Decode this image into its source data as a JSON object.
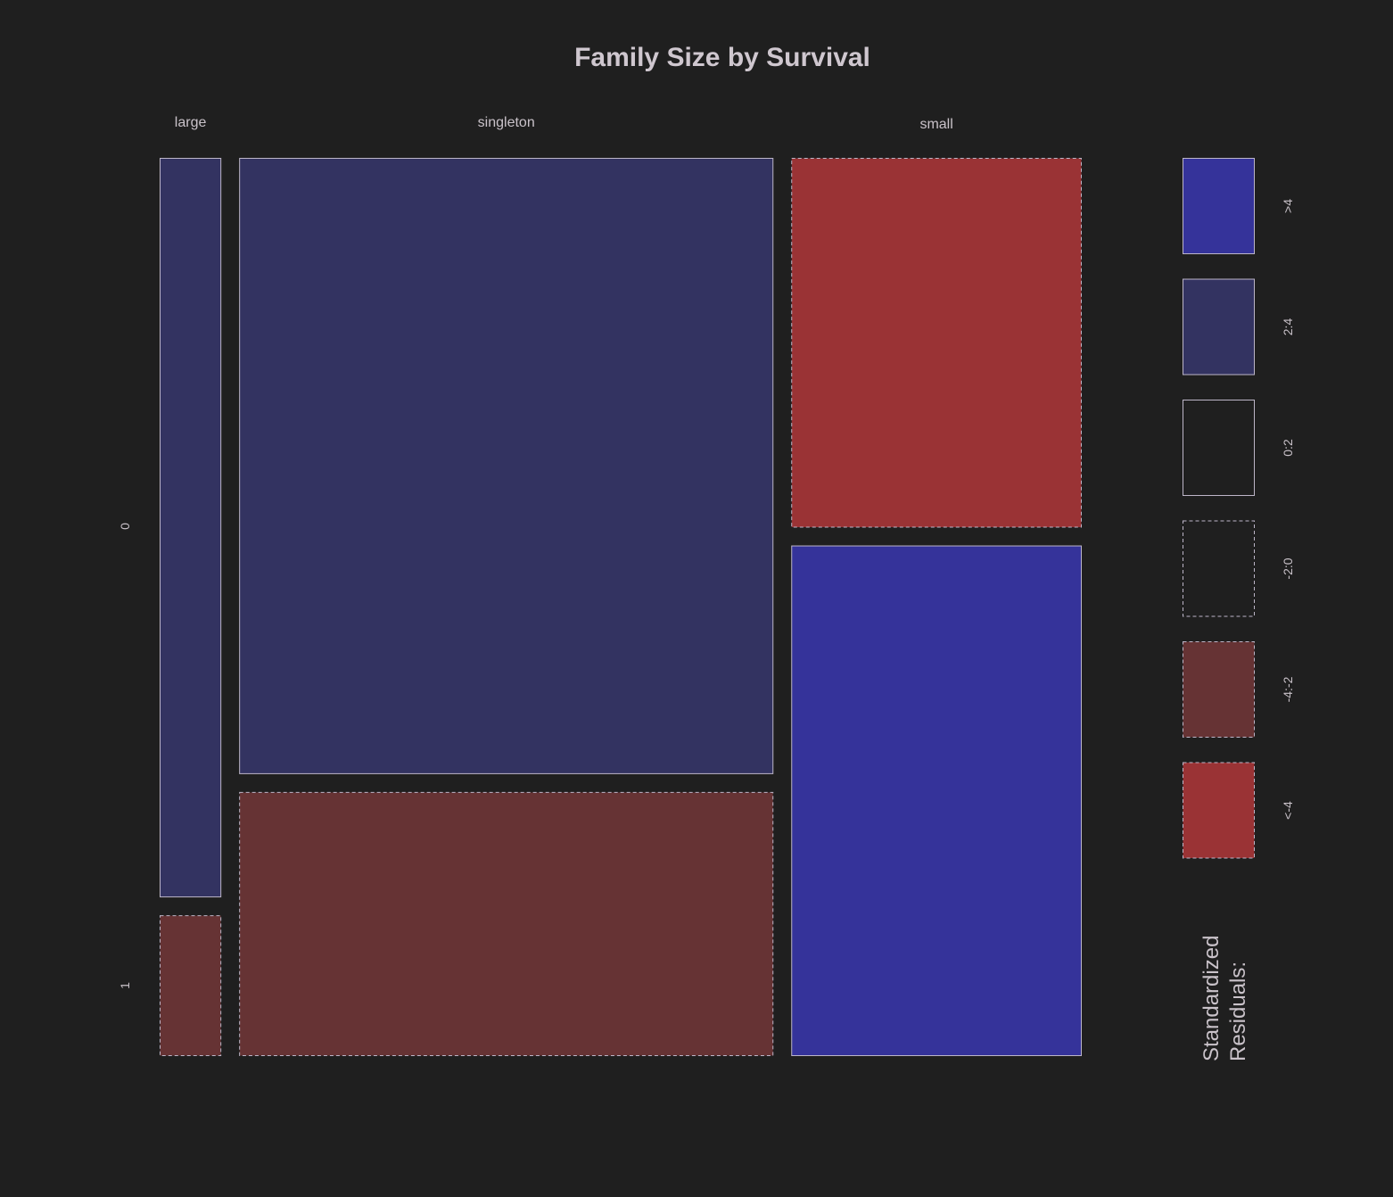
{
  "chart_data": {
    "type": "mosaic",
    "title": "Family Size by Survival",
    "column_variable_levels": [
      "large",
      "singleton",
      "small"
    ],
    "row_variable_levels": [
      "0",
      "1"
    ],
    "column_widths_relative": [
      62,
      537,
      292
    ],
    "row_proportions": {
      "large": [
        0.84,
        0.16
      ],
      "singleton": [
        0.7,
        0.3
      ],
      "small": [
        0.42,
        0.58
      ]
    },
    "cells": [
      {
        "col": "large",
        "row": "0",
        "residual_bin": "2:4"
      },
      {
        "col": "large",
        "row": "1",
        "residual_bin": "-4:-2"
      },
      {
        "col": "singleton",
        "row": "0",
        "residual_bin": "2:4"
      },
      {
        "col": "singleton",
        "row": "1",
        "residual_bin": "-4:-2"
      },
      {
        "col": "small",
        "row": "0",
        "residual_bin": "<-4"
      },
      {
        "col": "small",
        "row": "1",
        "residual_bin": ">4"
      }
    ],
    "legend": {
      "title_lines": [
        "Standardized",
        "Residuals:"
      ],
      "bins": [
        {
          "label": ">4",
          "color": "#35339a",
          "dashed": false
        },
        {
          "label": "2:4",
          "color": "#333361",
          "dashed": false
        },
        {
          "label": "0:2",
          "color": "#1f1f1f",
          "dashed": false
        },
        {
          "label": "-2:0",
          "color": "#1f1f1f",
          "dashed": true
        },
        {
          "label": "-4:-2",
          "color": "#663334",
          "dashed": true
        },
        {
          "label": "<-4",
          "color": "#9a3335",
          "dashed": true
        }
      ]
    },
    "colors": {
      "background": "#1f1f1f",
      "text": "#c9c2c9",
      "border": "#bdb6c8"
    }
  }
}
